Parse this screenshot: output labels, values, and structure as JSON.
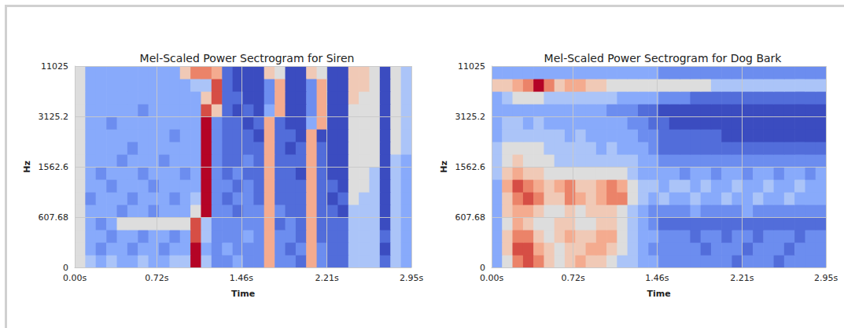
{
  "chart_data": [
    {
      "type": "heatmap",
      "title": "Mel-Scaled Power Sectrogram for Siren",
      "x_label": "Time",
      "y_label": "Hz",
      "xlim": [
        0,
        2.95
      ],
      "xticks": [
        {
          "value": 0,
          "label": "0.00s"
        },
        {
          "value": 0.72,
          "label": "0.72s"
        },
        {
          "value": 1.46,
          "label": "1.46s"
        },
        {
          "value": 2.21,
          "label": "2.21s"
        },
        {
          "value": 2.95,
          "label": "2.95s"
        }
      ],
      "ylim": [
        0,
        11025
      ],
      "yticks": [
        0,
        607.68,
        1562.6,
        3125.2,
        11025
      ],
      "grid": true,
      "x_bins": [
        0,
        0.092,
        0.184,
        0.277,
        0.369,
        0.461,
        0.553,
        0.645,
        0.738,
        0.83,
        0.922,
        1.014,
        1.106,
        1.198,
        1.291,
        1.383,
        1.475,
        1.567,
        1.659,
        1.752,
        1.844,
        1.936,
        2.028,
        2.12,
        2.213,
        2.305,
        2.397,
        2.489,
        2.581,
        2.673,
        2.766,
        2.858,
        2.95
      ],
      "y_bins": [
        0,
        151.92,
        303.84,
        455.76,
        607.68,
        846.41,
        1085.14,
        1323.87,
        1562.6,
        1953.25,
        2343.9,
        2734.55,
        3125.2,
        5100.15,
        7075.1,
        9050.05,
        11025
      ],
      "z": [
        [
          5,
          4,
          3,
          4,
          3,
          3,
          4,
          3,
          3,
          4,
          4,
          10,
          4,
          2,
          2,
          3,
          2,
          2,
          7,
          2,
          2,
          1,
          7,
          2,
          1,
          1,
          4,
          4,
          4,
          1,
          4,
          3
        ],
        [
          5,
          3,
          2,
          3,
          3,
          2,
          3,
          3,
          2,
          3,
          3,
          10,
          3,
          2,
          3,
          2,
          2,
          2,
          7,
          2,
          1,
          2,
          7,
          2,
          1,
          1,
          4,
          4,
          4,
          0,
          4,
          3
        ],
        [
          5,
          3,
          3,
          2,
          3,
          3,
          2,
          3,
          3,
          2,
          3,
          9,
          4,
          2,
          2,
          2,
          3,
          2,
          7,
          2,
          2,
          1,
          7,
          1,
          1,
          1,
          4,
          4,
          4,
          1,
          4,
          3
        ],
        [
          5,
          3,
          2,
          3,
          5,
          5,
          5,
          5,
          5,
          5,
          5,
          9,
          4,
          2,
          2,
          2,
          2,
          2,
          7,
          1,
          2,
          1,
          7,
          1,
          1,
          1,
          4,
          4,
          4,
          0,
          4,
          3
        ],
        [
          5,
          3,
          3,
          3,
          2,
          3,
          3,
          2,
          3,
          3,
          3,
          5,
          10,
          2,
          2,
          1,
          2,
          2,
          7,
          2,
          1,
          1,
          7,
          1,
          1,
          0,
          4,
          4,
          4,
          0,
          4,
          3
        ],
        [
          5,
          2,
          3,
          3,
          3,
          2,
          3,
          3,
          3,
          2,
          3,
          4,
          10,
          2,
          1,
          2,
          2,
          1,
          7,
          1,
          1,
          1,
          7,
          1,
          0,
          1,
          5,
          4,
          4,
          0,
          4,
          3
        ],
        [
          5,
          3,
          3,
          2,
          3,
          3,
          3,
          2,
          3,
          3,
          3,
          3,
          10,
          2,
          2,
          1,
          2,
          1,
          7,
          1,
          1,
          1,
          7,
          1,
          1,
          0,
          5,
          5,
          4,
          0,
          4,
          3
        ],
        [
          5,
          3,
          2,
          3,
          3,
          3,
          2,
          3,
          3,
          3,
          2,
          3,
          10,
          2,
          1,
          2,
          1,
          1,
          7,
          1,
          1,
          0,
          7,
          1,
          0,
          0,
          5,
          5,
          4,
          0,
          4,
          3
        ],
        [
          5,
          3,
          3,
          3,
          2,
          3,
          3,
          3,
          2,
          3,
          3,
          3,
          10,
          2,
          1,
          1,
          2,
          1,
          7,
          1,
          1,
          1,
          7,
          1,
          0,
          0,
          5,
          5,
          5,
          0,
          4,
          3
        ],
        [
          5,
          3,
          3,
          3,
          3,
          2,
          3,
          3,
          3,
          3,
          3,
          3,
          10,
          2,
          1,
          1,
          1,
          1,
          7,
          1,
          0,
          1,
          7,
          1,
          0,
          0,
          5,
          5,
          5,
          0,
          5,
          4
        ],
        [
          5,
          3,
          3,
          3,
          3,
          3,
          3,
          3,
          3,
          2,
          3,
          3,
          10,
          2,
          1,
          1,
          1,
          0,
          7,
          1,
          1,
          0,
          7,
          0,
          0,
          0,
          5,
          5,
          5,
          0,
          5,
          4
        ],
        [
          5,
          3,
          3,
          2,
          3,
          3,
          3,
          3,
          3,
          3,
          3,
          3,
          10,
          2,
          1,
          1,
          0,
          1,
          7,
          1,
          0,
          0,
          3,
          7,
          0,
          0,
          5,
          5,
          5,
          0,
          5,
          4
        ],
        [
          5,
          3,
          3,
          3,
          3,
          3,
          2,
          3,
          3,
          3,
          3,
          3,
          9,
          6,
          1,
          0,
          1,
          0,
          3,
          7,
          0,
          0,
          2,
          7,
          0,
          0,
          5,
          5,
          5,
          0,
          5,
          4
        ],
        [
          5,
          3,
          3,
          3,
          3,
          3,
          3,
          3,
          3,
          3,
          3,
          3,
          6,
          9,
          1,
          1,
          0,
          0,
          2,
          7,
          0,
          0,
          2,
          7,
          0,
          0,
          6,
          5,
          5,
          0,
          5,
          4
        ],
        [
          5,
          3,
          3,
          3,
          3,
          3,
          3,
          3,
          3,
          3,
          3,
          4,
          4,
          9,
          1,
          0,
          0,
          0,
          2,
          7,
          0,
          0,
          2,
          7,
          0,
          0,
          6,
          6,
          5,
          0,
          5,
          4
        ],
        [
          5,
          3,
          3,
          3,
          3,
          3,
          3,
          3,
          3,
          3,
          6,
          8,
          8,
          7,
          1,
          0,
          0,
          0,
          6,
          5,
          0,
          0,
          6,
          5,
          0,
          0,
          6,
          6,
          5,
          0,
          5,
          4
        ]
      ]
    },
    {
      "type": "heatmap",
      "title": "Mel-Scaled Power Sectrogram for Dog Bark",
      "x_label": "Time",
      "y_label": "Hz",
      "xlim": [
        0,
        2.95
      ],
      "xticks": [
        {
          "value": 0,
          "label": "0.00s"
        },
        {
          "value": 0.72,
          "label": "0.72s"
        },
        {
          "value": 1.46,
          "label": "1.46s"
        },
        {
          "value": 2.21,
          "label": "2.21s"
        },
        {
          "value": 2.95,
          "label": "2.95s"
        }
      ],
      "ylim": [
        0,
        11025
      ],
      "yticks": [
        0,
        607.68,
        1562.6,
        3125.2,
        11025
      ],
      "grid": true,
      "x_bins": [
        0,
        0.092,
        0.184,
        0.277,
        0.369,
        0.461,
        0.553,
        0.645,
        0.738,
        0.83,
        0.922,
        1.014,
        1.106,
        1.198,
        1.291,
        1.383,
        1.475,
        1.567,
        1.659,
        1.752,
        1.844,
        1.936,
        2.028,
        2.12,
        2.213,
        2.305,
        2.397,
        2.489,
        2.581,
        2.673,
        2.766,
        2.858,
        2.95
      ],
      "y_bins": [
        0,
        151.92,
        303.84,
        455.76,
        607.68,
        846.41,
        1085.14,
        1323.87,
        1562.6,
        1953.25,
        2343.9,
        2734.55,
        3125.2,
        5100.15,
        7075.1,
        9050.05,
        11025
      ],
      "z": [
        [
          3,
          5,
          8,
          9,
          8,
          6,
          5,
          6,
          7,
          6,
          6,
          5,
          4,
          4,
          3,
          3,
          2,
          2,
          2,
          2,
          2,
          2,
          2,
          1,
          2,
          2,
          2,
          1,
          2,
          2,
          2,
          2
        ],
        [
          3,
          6,
          9,
          9,
          7,
          6,
          5,
          6,
          6,
          7,
          7,
          6,
          5,
          4,
          3,
          2,
          2,
          2,
          2,
          2,
          1,
          2,
          2,
          2,
          1,
          2,
          2,
          2,
          1,
          2,
          2,
          2
        ],
        [
          3,
          6,
          8,
          8,
          6,
          5,
          6,
          7,
          6,
          6,
          7,
          7,
          5,
          4,
          3,
          3,
          2,
          2,
          2,
          1,
          2,
          2,
          1,
          2,
          2,
          1,
          2,
          2,
          2,
          1,
          2,
          2
        ],
        [
          3,
          5,
          7,
          6,
          5,
          5,
          6,
          6,
          5,
          5,
          6,
          6,
          5,
          4,
          3,
          2,
          1,
          1,
          1,
          1,
          1,
          1,
          1,
          1,
          1,
          1,
          1,
          1,
          1,
          1,
          1,
          1
        ],
        [
          3,
          6,
          7,
          7,
          6,
          5,
          5,
          6,
          5,
          6,
          6,
          6,
          5,
          4,
          3,
          2,
          2,
          2,
          2,
          3,
          2,
          2,
          2,
          2,
          3,
          2,
          2,
          2,
          2,
          2,
          2,
          2
        ],
        [
          3,
          6,
          8,
          9,
          8,
          6,
          6,
          8,
          7,
          6,
          7,
          8,
          8,
          5,
          4,
          3,
          4,
          3,
          3,
          4,
          3,
          3,
          4,
          3,
          3,
          4,
          3,
          3,
          4,
          3,
          3,
          3
        ],
        [
          3,
          7,
          9,
          8,
          7,
          6,
          7,
          8,
          6,
          6,
          7,
          8,
          7,
          5,
          4,
          4,
          3,
          4,
          4,
          3,
          4,
          3,
          3,
          4,
          3,
          3,
          4,
          3,
          3,
          4,
          3,
          3
        ],
        [
          4,
          6,
          7,
          6,
          6,
          5,
          5,
          5,
          5,
          5,
          5,
          5,
          5,
          4,
          3,
          3,
          3,
          3,
          2,
          3,
          3,
          2,
          3,
          3,
          2,
          3,
          3,
          2,
          3,
          3,
          2,
          3
        ],
        [
          4,
          5,
          6,
          5,
          5,
          5,
          4,
          4,
          4,
          4,
          4,
          4,
          4,
          4,
          3,
          3,
          2,
          2,
          2,
          2,
          2,
          2,
          2,
          2,
          2,
          2,
          2,
          2,
          2,
          2,
          2,
          2
        ],
        [
          4,
          5,
          5,
          5,
          5,
          4,
          4,
          4,
          4,
          4,
          3,
          4,
          3,
          3,
          3,
          2,
          1,
          1,
          1,
          1,
          1,
          1,
          1,
          1,
          1,
          1,
          1,
          1,
          1,
          1,
          1,
          1
        ],
        [
          3,
          4,
          4,
          4,
          4,
          4,
          4,
          3,
          4,
          3,
          3,
          3,
          3,
          3,
          2,
          2,
          1,
          1,
          1,
          1,
          1,
          1,
          0,
          0,
          0,
          0,
          0,
          0,
          0,
          0,
          0,
          0
        ],
        [
          3,
          4,
          4,
          3,
          4,
          3,
          3,
          3,
          3,
          3,
          3,
          3,
          3,
          2,
          2,
          1,
          1,
          0,
          0,
          0,
          0,
          0,
          0,
          0,
          0,
          0,
          0,
          0,
          0,
          0,
          0,
          0
        ],
        [
          3,
          3,
          3,
          3,
          3,
          3,
          3,
          3,
          3,
          3,
          3,
          2,
          2,
          2,
          1,
          1,
          0,
          0,
          0,
          0,
          0,
          0,
          0,
          0,
          0,
          0,
          0,
          0,
          0,
          0,
          0,
          0
        ],
        [
          3,
          4,
          5,
          5,
          5,
          4,
          4,
          4,
          4,
          4,
          4,
          4,
          3,
          3,
          3,
          3,
          2,
          2,
          2,
          1,
          1,
          1,
          1,
          1,
          1,
          1,
          1,
          1,
          1,
          1,
          1,
          1
        ],
        [
          6,
          6,
          7,
          8,
          10,
          8,
          6,
          7,
          7,
          6,
          6,
          5,
          5,
          5,
          5,
          5,
          5,
          5,
          5,
          5,
          5,
          4,
          4,
          4,
          4,
          4,
          4,
          4,
          4,
          4,
          4,
          4
        ],
        [
          3,
          3,
          3,
          3,
          3,
          3,
          3,
          3,
          3,
          3,
          3,
          3,
          3,
          3,
          3,
          3,
          2,
          2,
          2,
          2,
          2,
          2,
          2,
          2,
          2,
          2,
          2,
          2,
          2,
          2,
          2,
          2
        ]
      ]
    }
  ]
}
